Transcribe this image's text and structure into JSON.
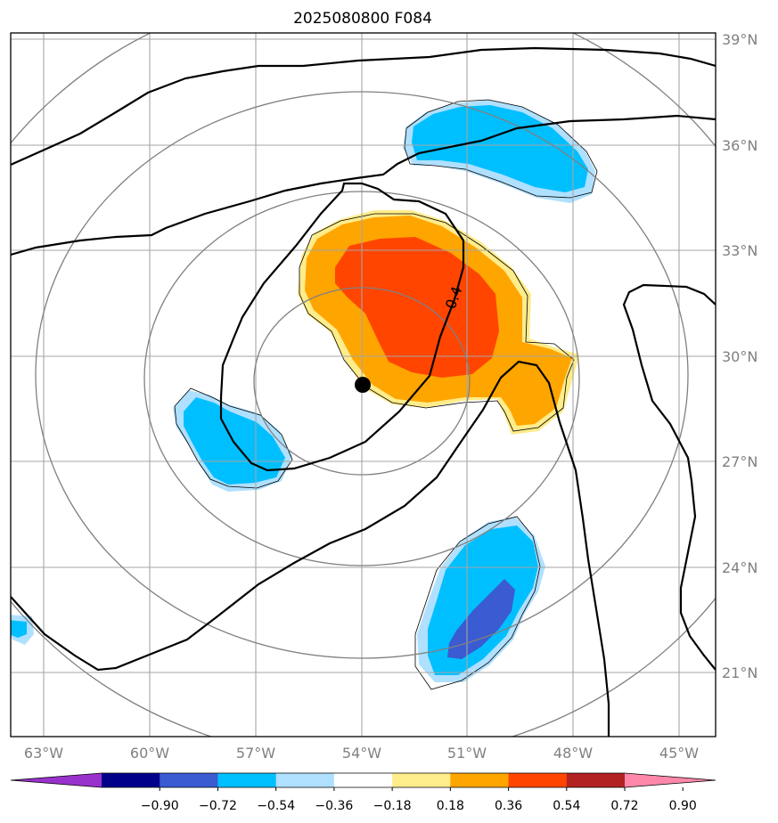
{
  "chart_data": {
    "type": "heatmap",
    "title": "2025080800 F084",
    "x_ticks": [
      "63°W",
      "60°W",
      "57°W",
      "54°W",
      "51°W",
      "48°W",
      "45°W"
    ],
    "y_ticks": [
      "39°N",
      "36°N",
      "33°N",
      "30°N",
      "27°N",
      "24°N",
      "21°N"
    ],
    "lon_range": [
      -64,
      -44
    ],
    "lat_range": [
      19.3,
      39.2
    ],
    "center_marker": {
      "lon": -54.0,
      "lat": 29.2
    },
    "range_rings_deg": [
      3,
      6,
      9,
      12
    ],
    "contour_label": "0.4",
    "colorbar": {
      "ticks": [
        "−0.90",
        "−0.72",
        "−0.54",
        "−0.36",
        "−0.18",
        "0.18",
        "0.36",
        "0.54",
        "0.72",
        "0.90"
      ],
      "colors": [
        "#9932cc",
        "#00008b",
        "#3a5bd1",
        "#00bfff",
        "#b0e0ff",
        "#ffffff",
        "#ffec8b",
        "#ffa500",
        "#ff4500",
        "#b22222",
        "#ff88aa"
      ],
      "extend": "both"
    }
  }
}
